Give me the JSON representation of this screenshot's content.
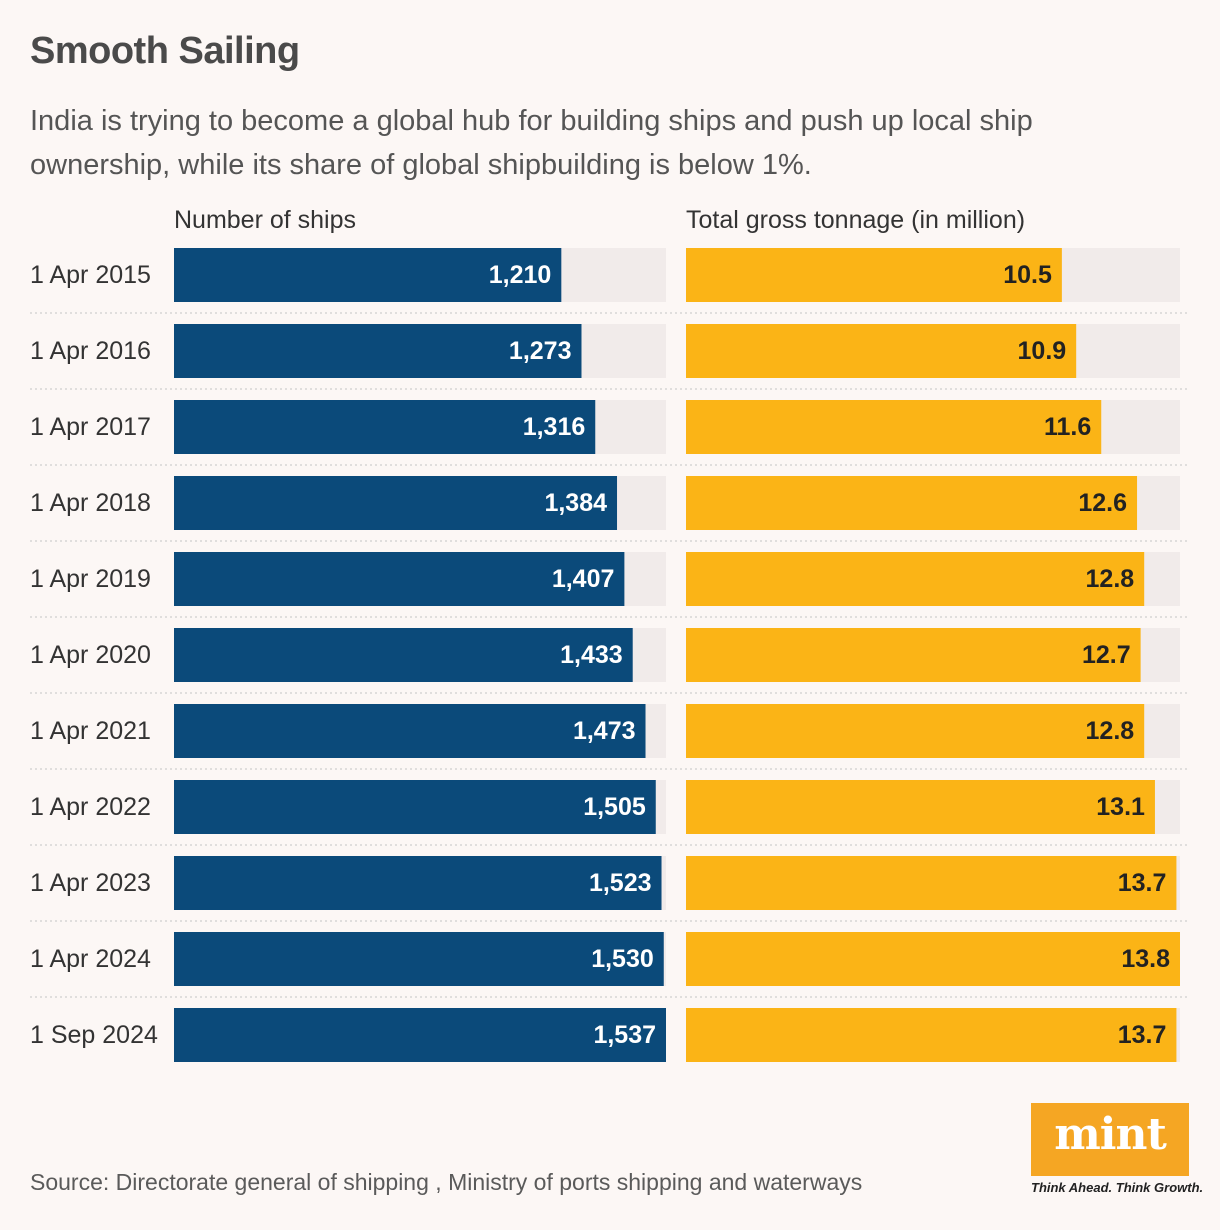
{
  "title": "Smooth Sailing",
  "subtitle": "India is trying to become a global hub for building ships and push up local ship ownership, while its share of global shipbuilding is below 1%.",
  "source": "Source: Directorate general of shipping , Ministry of ports shipping and waterways",
  "logo": {
    "text": "mint",
    "tagline": "Think Ahead. Think Growth."
  },
  "colors": {
    "ships_bar": "#0b4a7a",
    "tonnage_bar": "#fbb416",
    "track": "#f1ebea",
    "separator": "#cfcfcf",
    "logo_bg": "#f5a623"
  },
  "chart_data": {
    "type": "bar",
    "orientation": "horizontal",
    "categories": [
      "1 Apr 2015",
      "1 Apr 2016",
      "1 Apr 2017",
      "1 Apr 2018",
      "1 Apr 2019",
      "1 Apr 2020",
      "1 Apr 2021",
      "1 Apr 2022",
      "1 Apr 2023",
      "1 Apr 2024",
      "1 Sep 2024"
    ],
    "series": [
      {
        "name": "Number of ships",
        "values": [
          1210,
          1273,
          1316,
          1384,
          1407,
          1433,
          1473,
          1505,
          1523,
          1530,
          1537
        ],
        "labels": [
          "1,210",
          "1,273",
          "1,316",
          "1,384",
          "1,407",
          "1,433",
          "1,473",
          "1,505",
          "1,523",
          "1,530",
          "1,537"
        ],
        "max": 1537
      },
      {
        "name": "Total gross tonnage (in million)",
        "values": [
          10.5,
          10.9,
          11.6,
          12.6,
          12.8,
          12.7,
          12.8,
          13.1,
          13.7,
          13.8,
          13.7
        ],
        "labels": [
          "10.5",
          "10.9",
          "11.6",
          "12.6",
          "12.8",
          "12.7",
          "12.8",
          "13.1",
          "13.7",
          "13.8",
          "13.7"
        ],
        "max": 13.8
      }
    ]
  }
}
